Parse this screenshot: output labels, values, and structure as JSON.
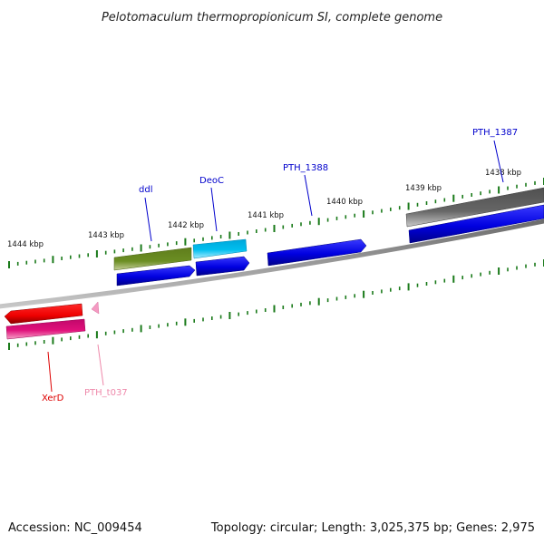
{
  "title": "Pelotomaculum thermopropionicum SI, complete genome",
  "footer": {
    "accession": "Accession: NC_009454",
    "summary": "Topology: circular; Length: 3,025,375 bp; Genes: 2,975"
  },
  "colors": {
    "backbone": "#888888",
    "ticks": "#1a7a1a",
    "cds_blue": "#0000e0",
    "gene_olive": "#6b8e23",
    "gene_cyan": "#00bfef",
    "gene_gray": "#666666",
    "gene_red": "#ee0000",
    "gene_magenta": "#e0107a",
    "trna_pink": "#f49ac2",
    "label_blue": "#0000cc",
    "label_red": "#dd0000",
    "label_pink": "#ee88aa"
  },
  "scale_labels": [
    "1444 kbp",
    "1443 kbp",
    "1442 kbp",
    "1441 kbp",
    "1440 kbp",
    "1439 kbp",
    "1438 kbp"
  ],
  "genes": [
    {
      "name": "ddl",
      "color_key": "label_blue"
    },
    {
      "name": "DeoC",
      "color_key": "label_blue"
    },
    {
      "name": "PTH_1388",
      "color_key": "label_blue"
    },
    {
      "name": "PTH_1387",
      "color_key": "label_blue"
    },
    {
      "name": "XerD",
      "color_key": "label_red"
    },
    {
      "name": "PTH_t037",
      "color_key": "label_pink"
    }
  ]
}
